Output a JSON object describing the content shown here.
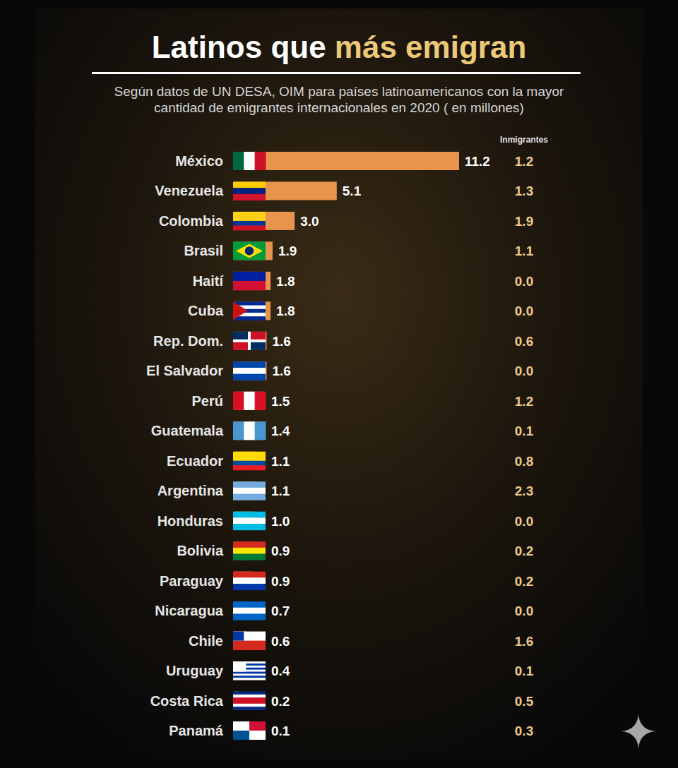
{
  "chart_data": {
    "type": "bar",
    "orientation": "horizontal",
    "title": "Latinos que más emigran",
    "subtitle": "Según datos de UN DESA, OIM para países latinoamericanos con la mayor cantidad de emigrantes internacionales en 2020 ( en millones)",
    "categories": [
      "México",
      "Venezuela",
      "Colombia",
      "Brasil",
      "Haití",
      "Cuba",
      "Rep. Dom.",
      "El Salvador",
      "Perú",
      "Guatemala",
      "Ecuador",
      "Argentina",
      "Honduras",
      "Bolivia",
      "Paraguay",
      "Nicaragua",
      "Chile",
      "Uruguay",
      "Costa Rica",
      "Panamá"
    ],
    "values": [
      11.2,
      5.1,
      3.0,
      1.9,
      1.8,
      1.8,
      1.6,
      1.6,
      1.5,
      1.4,
      1.1,
      1.1,
      1.0,
      0.9,
      0.9,
      0.7,
      0.6,
      0.4,
      0.2,
      0.1
    ],
    "value_labels": [
      "11.2",
      "5.1",
      "3.0",
      "1.9",
      "1.8",
      "1.8",
      "1.6",
      "1.6",
      "1.5",
      "1.4",
      "1.1",
      "1.1",
      "1.0",
      "0.9",
      "0.9",
      "0.7",
      "0.6",
      "0.4",
      "0.2",
      "0.1"
    ],
    "immigrants": {
      "label": "Inmigrantes",
      "values": [
        1.2,
        1.3,
        1.9,
        1.1,
        0.0,
        0.0,
        0.6,
        0.0,
        1.2,
        0.1,
        0.8,
        2.3,
        0.0,
        0.2,
        0.2,
        0.0,
        1.6,
        0.1,
        0.5,
        0.3
      ],
      "value_labels": [
        "1.2",
        "1.3",
        "1.9",
        "1.1",
        "0.0",
        "0.0",
        "0.6",
        "0.0",
        "1.2",
        "0.1",
        "0.8",
        "2.3",
        "0.0",
        "0.2",
        "0.2",
        "0.0",
        "1.6",
        "0.1",
        "0.5",
        "0.3"
      ]
    },
    "xlim": [
      0,
      11.2
    ],
    "color": "#e8944c",
    "data_labels": true,
    "tick_labels": false,
    "grid": false
  }
}
